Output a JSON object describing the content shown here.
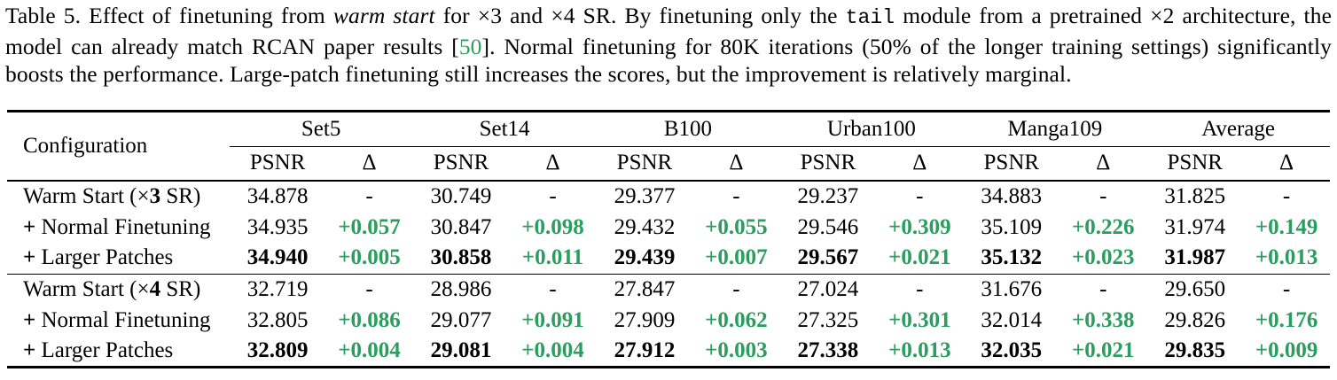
{
  "colors": {
    "delta_green": "#2b9d5e",
    "citation_green": "#2e9e60",
    "text_black": "#000000",
    "background": "#ffffff"
  },
  "caption": {
    "segments": [
      {
        "text": "Table 5.  Effect of finetuning from ",
        "style": "normal"
      },
      {
        "text": "warm start",
        "style": "italic"
      },
      {
        "text": " for ",
        "style": "normal"
      },
      {
        "text": "×3",
        "style": "math"
      },
      {
        "text": " and ",
        "style": "normal"
      },
      {
        "text": "×4",
        "style": "math"
      },
      {
        "text": " SR. By finetuning only the ",
        "style": "normal"
      },
      {
        "text": "tail",
        "style": "mono"
      },
      {
        "text": " module from a pretrained ",
        "style": "normal"
      },
      {
        "text": "×2",
        "style": "math"
      },
      {
        "text": " architecture, the model can already match RCAN paper results [",
        "style": "normal"
      },
      {
        "text": "50",
        "style": "citation"
      },
      {
        "text": "].  Normal finetuning for 80K iterations (50% of the longer training settings) significantly boosts the performance. Large-patch finetuning still increases the scores, but the improvement is relatively marginal.",
        "style": "normal"
      }
    ]
  },
  "table": {
    "config_header": "Configuration",
    "datasets": [
      "Set5",
      "Set14",
      "B100",
      "Urban100",
      "Manga109",
      "Average"
    ],
    "subheaders": {
      "psnr": "PSNR",
      "delta": "Δ"
    },
    "dash": "-",
    "groups": [
      {
        "rows": [
          {
            "label": [
              {
                "text": "Warm Start (×",
                "bold": false
              },
              {
                "text": "3",
                "bold": true
              },
              {
                "text": " SR)",
                "bold": false
              }
            ],
            "psnr": [
              "34.878",
              "30.749",
              "29.377",
              "29.237",
              "34.883",
              "31.825"
            ],
            "delta": [
              "-",
              "-",
              "-",
              "-",
              "-",
              "-"
            ],
            "psnr_bold": false
          },
          {
            "label": [
              {
                "text": "+",
                "bold": true
              },
              {
                "text": " Normal Finetuning",
                "bold": false
              }
            ],
            "psnr": [
              "34.935",
              "30.847",
              "29.432",
              "29.546",
              "35.109",
              "31.974"
            ],
            "delta": [
              "+0.057",
              "+0.098",
              "+0.055",
              "+0.309",
              "+0.226",
              "+0.149"
            ],
            "psnr_bold": false
          },
          {
            "label": [
              {
                "text": "+",
                "bold": true
              },
              {
                "text": " Larger Patches",
                "bold": false
              }
            ],
            "psnr": [
              "34.940",
              "30.858",
              "29.439",
              "29.567",
              "35.132",
              "31.987"
            ],
            "delta": [
              "+0.005",
              "+0.011",
              "+0.007",
              "+0.021",
              "+0.023",
              "+0.013"
            ],
            "psnr_bold": true
          }
        ]
      },
      {
        "rows": [
          {
            "label": [
              {
                "text": "Warm Start (×",
                "bold": false
              },
              {
                "text": "4",
                "bold": true
              },
              {
                "text": " SR)",
                "bold": false
              }
            ],
            "psnr": [
              "32.719",
              "28.986",
              "27.847",
              "27.024",
              "31.676",
              "29.650"
            ],
            "delta": [
              "-",
              "-",
              "-",
              "-",
              "-",
              "-"
            ],
            "psnr_bold": false
          },
          {
            "label": [
              {
                "text": "+",
                "bold": true
              },
              {
                "text": " Normal Finetuning",
                "bold": false
              }
            ],
            "psnr": [
              "32.805",
              "29.077",
              "27.909",
              "27.325",
              "32.014",
              "29.826"
            ],
            "delta": [
              "+0.086",
              "+0.091",
              "+0.062",
              "+0.301",
              "+0.338",
              "+0.176"
            ],
            "psnr_bold": false
          },
          {
            "label": [
              {
                "text": "+",
                "bold": true
              },
              {
                "text": " Larger Patches",
                "bold": false
              }
            ],
            "psnr": [
              "32.809",
              "29.081",
              "27.912",
              "27.338",
              "32.035",
              "29.835"
            ],
            "delta": [
              "+0.004",
              "+0.004",
              "+0.003",
              "+0.013",
              "+0.021",
              "+0.009"
            ],
            "psnr_bold": true
          }
        ]
      }
    ]
  }
}
